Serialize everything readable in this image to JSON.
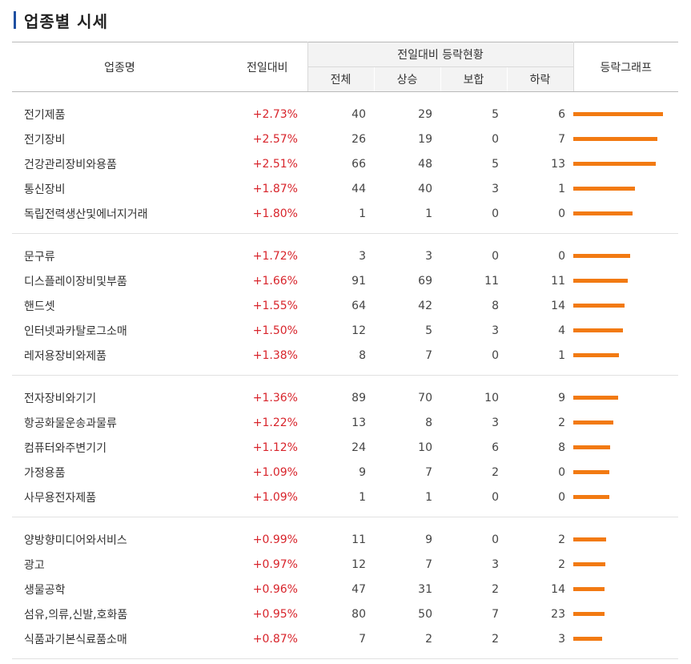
{
  "page": {
    "title": "업종별 시세"
  },
  "table": {
    "headers": {
      "name": "업종명",
      "change": "전일대비",
      "group": "전일대비 등락현황",
      "total": "전체",
      "up": "상승",
      "flat": "보합",
      "down": "하락",
      "graph": "등락그래프"
    },
    "groups": [
      {
        "rows": [
          {
            "name": "전기제품",
            "change": "+2.73%",
            "total": "40",
            "up": "29",
            "flat": "5",
            "down": "6",
            "pct": 2.73
          },
          {
            "name": "전기장비",
            "change": "+2.57%",
            "total": "26",
            "up": "19",
            "flat": "0",
            "down": "7",
            "pct": 2.57
          },
          {
            "name": "건강관리장비와용품",
            "change": "+2.51%",
            "total": "66",
            "up": "48",
            "flat": "5",
            "down": "13",
            "pct": 2.51
          },
          {
            "name": "통신장비",
            "change": "+1.87%",
            "total": "44",
            "up": "40",
            "flat": "3",
            "down": "1",
            "pct": 1.87
          },
          {
            "name": "독립전력생산및에너지거래",
            "change": "+1.80%",
            "total": "1",
            "up": "1",
            "flat": "0",
            "down": "0",
            "pct": 1.8
          }
        ]
      },
      {
        "rows": [
          {
            "name": "문구류",
            "change": "+1.72%",
            "total": "3",
            "up": "3",
            "flat": "0",
            "down": "0",
            "pct": 1.72
          },
          {
            "name": "디스플레이장비및부품",
            "change": "+1.66%",
            "total": "91",
            "up": "69",
            "flat": "11",
            "down": "11",
            "pct": 1.66
          },
          {
            "name": "핸드셋",
            "change": "+1.55%",
            "total": "64",
            "up": "42",
            "flat": "8",
            "down": "14",
            "pct": 1.55
          },
          {
            "name": "인터넷과카탈로그소매",
            "change": "+1.50%",
            "total": "12",
            "up": "5",
            "flat": "3",
            "down": "4",
            "pct": 1.5
          },
          {
            "name": "레저용장비와제품",
            "change": "+1.38%",
            "total": "8",
            "up": "7",
            "flat": "0",
            "down": "1",
            "pct": 1.38
          }
        ]
      },
      {
        "rows": [
          {
            "name": "전자장비와기기",
            "change": "+1.36%",
            "total": "89",
            "up": "70",
            "flat": "10",
            "down": "9",
            "pct": 1.36
          },
          {
            "name": "항공화물운송과물류",
            "change": "+1.22%",
            "total": "13",
            "up": "8",
            "flat": "3",
            "down": "2",
            "pct": 1.22
          },
          {
            "name": "컴퓨터와주변기기",
            "change": "+1.12%",
            "total": "24",
            "up": "10",
            "flat": "6",
            "down": "8",
            "pct": 1.12
          },
          {
            "name": "가정용품",
            "change": "+1.09%",
            "total": "9",
            "up": "7",
            "flat": "2",
            "down": "0",
            "pct": 1.09
          },
          {
            "name": "사무용전자제품",
            "change": "+1.09%",
            "total": "1",
            "up": "1",
            "flat": "0",
            "down": "0",
            "pct": 1.09
          }
        ]
      },
      {
        "rows": [
          {
            "name": "양방향미디어와서비스",
            "change": "+0.99%",
            "total": "11",
            "up": "9",
            "flat": "0",
            "down": "2",
            "pct": 0.99
          },
          {
            "name": "광고",
            "change": "+0.97%",
            "total": "12",
            "up": "7",
            "flat": "3",
            "down": "2",
            "pct": 0.97
          },
          {
            "name": "생물공학",
            "change": "+0.96%",
            "total": "47",
            "up": "31",
            "flat": "2",
            "down": "14",
            "pct": 0.96
          },
          {
            "name": "섬유,의류,신발,호화품",
            "change": "+0.95%",
            "total": "80",
            "up": "50",
            "flat": "7",
            "down": "23",
            "pct": 0.95
          },
          {
            "name": "식품과기본식료품소매",
            "change": "+0.87%",
            "total": "7",
            "up": "2",
            "flat": "2",
            "down": "3",
            "pct": 0.87
          }
        ]
      }
    ],
    "colors": {
      "positive": "#d8242b",
      "bar": "#f27a12",
      "accent": "#1e4fa1"
    }
  }
}
